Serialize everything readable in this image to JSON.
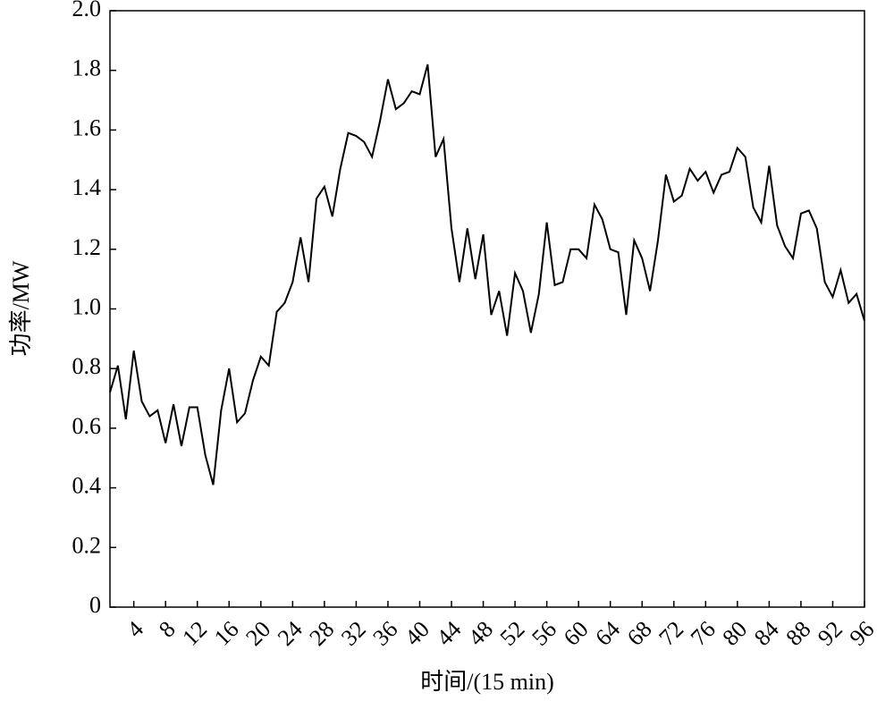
{
  "chart_data": {
    "type": "line",
    "xlabel": "时间/(15 min)",
    "ylabel": "功率/MW",
    "color": "#000000",
    "x": [
      1,
      2,
      3,
      4,
      5,
      6,
      7,
      8,
      9,
      10,
      11,
      12,
      13,
      14,
      15,
      16,
      17,
      18,
      19,
      20,
      21,
      22,
      23,
      24,
      25,
      26,
      27,
      28,
      29,
      30,
      31,
      32,
      33,
      34,
      35,
      36,
      37,
      38,
      39,
      40,
      41,
      42,
      43,
      44,
      45,
      46,
      47,
      48,
      49,
      50,
      51,
      52,
      53,
      54,
      55,
      56,
      57,
      58,
      59,
      60,
      61,
      62,
      63,
      64,
      65,
      66,
      67,
      68,
      69,
      70,
      71,
      72,
      73,
      74,
      75,
      76,
      77,
      78,
      79,
      80,
      81,
      82,
      83,
      84,
      85,
      86,
      87,
      88,
      89,
      90,
      91,
      92,
      93,
      94,
      95,
      96
    ],
    "values": [
      0.72,
      0.81,
      0.63,
      0.86,
      0.69,
      0.64,
      0.66,
      0.55,
      0.68,
      0.54,
      0.67,
      0.67,
      0.51,
      0.41,
      0.66,
      0.8,
      0.62,
      0.65,
      0.76,
      0.84,
      0.81,
      0.99,
      1.02,
      1.09,
      1.24,
      1.09,
      1.37,
      1.41,
      1.31,
      1.47,
      1.59,
      1.58,
      1.56,
      1.51,
      1.63,
      1.77,
      1.67,
      1.69,
      1.73,
      1.72,
      1.82,
      1.51,
      1.57,
      1.27,
      1.09,
      1.27,
      1.1,
      1.25,
      0.98,
      1.06,
      0.91,
      1.12,
      1.06,
      0.92,
      1.05,
      1.29,
      1.08,
      1.09,
      1.2,
      1.2,
      1.17,
      1.35,
      1.3,
      1.2,
      1.19,
      0.98,
      1.23,
      1.17,
      1.06,
      1.23,
      1.45,
      1.36,
      1.38,
      1.47,
      1.43,
      1.46,
      1.39,
      1.45,
      1.46,
      1.54,
      1.51,
      1.34,
      1.29,
      1.48,
      1.28,
      1.21,
      1.17,
      1.32,
      1.33,
      1.27,
      1.09,
      1.04,
      1.13,
      1.02,
      1.05,
      0.96
    ],
    "xlim": [
      1,
      96
    ],
    "xticks": [
      4,
      8,
      12,
      16,
      20,
      24,
      28,
      32,
      36,
      40,
      44,
      48,
      52,
      56,
      60,
      64,
      68,
      72,
      76,
      80,
      84,
      88,
      92,
      96
    ],
    "ylim": [
      0,
      2
    ],
    "yticks": [
      0,
      0.2,
      0.4,
      0.6,
      0.8,
      {
        "value": 1,
        "label": "1.0"
      },
      1.2,
      1.4,
      1.6,
      1.8,
      {
        "value": 2,
        "label": "2.0"
      }
    ]
  }
}
